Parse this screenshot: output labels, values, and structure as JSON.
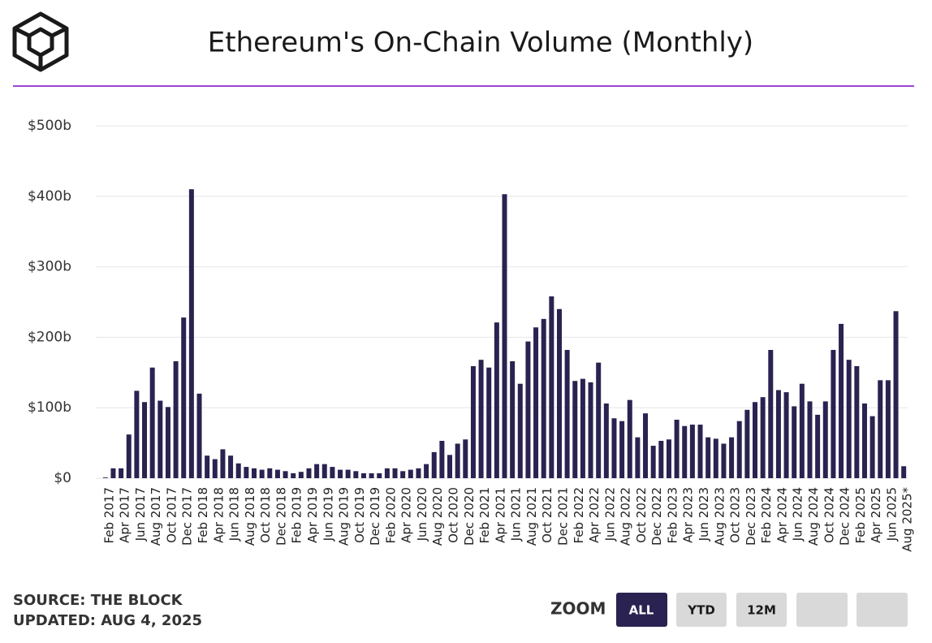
{
  "chart_data": {
    "type": "bar",
    "title": "Ethereum's On-Chain Volume (Monthly)",
    "categories": [
      "Feb 2017",
      null,
      "Apr 2017",
      null,
      "Jun 2017",
      null,
      "Aug 2017",
      null,
      "Oct 2017",
      null,
      "Dec 2017",
      null,
      "Feb 2018",
      null,
      "Apr 2018",
      null,
      "Jun 2018",
      null,
      "Aug 2018",
      null,
      "Oct 2018",
      null,
      "Dec 2018",
      null,
      "Feb 2019",
      null,
      "Apr 2019",
      null,
      "Jun 2019",
      null,
      "Aug 2019",
      null,
      "Oct 2019",
      null,
      "Dec 2019",
      null,
      "Feb 2020",
      null,
      "Apr 2020",
      null,
      "Jun 2020",
      null,
      "Aug 2020",
      null,
      "Oct 2020",
      null,
      "Dec 2020",
      null,
      "Feb 2021",
      null,
      "Apr 2021",
      null,
      "Jun 2021",
      null,
      "Aug 2021",
      null,
      "Oct 2021",
      null,
      "Dec 2021",
      null,
      "Feb 2022",
      null,
      "Apr 2022",
      null,
      "Jun 2022",
      null,
      "Aug 2022",
      null,
      "Oct 2022",
      null,
      "Dec 2022",
      null,
      "Feb 2023",
      null,
      "Apr 2023",
      null,
      "Jun 2023",
      null,
      "Aug 2023",
      null,
      "Oct 2023",
      null,
      "Dec 2023",
      null,
      "Feb 2024",
      null,
      "Apr 2024",
      null,
      "Jun 2024",
      null,
      "Aug 2024",
      null,
      "Oct 2024",
      null,
      "Dec 2024",
      null,
      "Feb 2025",
      null,
      "Apr 2025",
      null,
      "Jun 2025",
      null,
      "Aug 2025*"
    ],
    "values": [
      1,
      14,
      14,
      62,
      124,
      108,
      157,
      110,
      101,
      166,
      228,
      410,
      120,
      32,
      27,
      41,
      32,
      21,
      16,
      14,
      12,
      14,
      12,
      10,
      7,
      9,
      14,
      20,
      20,
      16,
      12,
      12,
      10,
      7,
      7,
      7,
      14,
      14,
      10,
      12,
      14,
      20,
      37,
      53,
      33,
      49,
      55,
      159,
      168,
      157,
      221,
      403,
      166,
      134,
      194,
      214,
      226,
      258,
      240,
      182,
      138,
      141,
      136,
      164,
      106,
      85,
      81,
      111,
      58,
      92,
      46,
      53,
      55,
      83,
      74,
      76,
      76,
      58,
      56,
      49,
      58,
      81,
      97,
      108,
      115,
      182,
      125,
      122,
      102,
      134,
      109,
      90,
      109,
      182,
      219,
      168,
      159,
      106,
      88,
      139,
      139,
      237,
      17
    ],
    "color": "#2a2250",
    "ylim": [
      0,
      500
    ],
    "yticks": [
      {
        "value": 0,
        "label": "$0"
      },
      {
        "value": 100,
        "label": "$100b"
      },
      {
        "value": 200,
        "label": "$200b"
      },
      {
        "value": 300,
        "label": "$300b"
      },
      {
        "value": 400,
        "label": "$400b"
      },
      {
        "value": 500,
        "label": "$500b"
      }
    ],
    "grid": true
  },
  "source": "SOURCE: THE BLOCK",
  "updated": "UPDATED: AUG 4, 2025",
  "zoom": {
    "label": "ZOOM",
    "buttons": [
      "ALL",
      "YTD",
      "12M"
    ]
  }
}
